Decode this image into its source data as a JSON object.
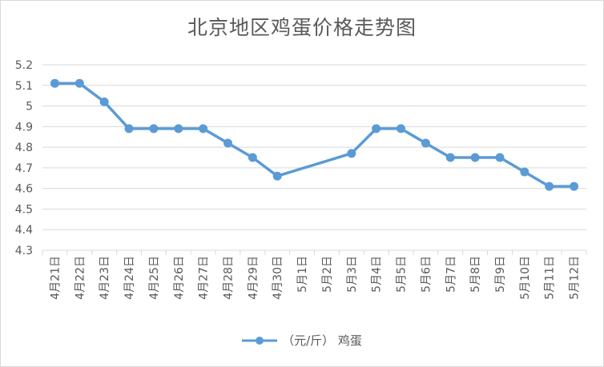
{
  "chart_data": {
    "type": "line",
    "title": "北京地区鸡蛋价格走势图",
    "xlabel": "",
    "ylabel": "",
    "categories": [
      "4月21日",
      "4月22日",
      "4月23日",
      "4月24日",
      "4月25日",
      "4月26日",
      "4月27日",
      "4月28日",
      "4月29日",
      "4月30日",
      "5月1日",
      "5月2日",
      "5月3日",
      "5月4日",
      "5月5日",
      "5月6日",
      "5月7日",
      "5月8日",
      "5月9日",
      "5月10日",
      "5月11日",
      "5月12日"
    ],
    "series": [
      {
        "name": "（元/斤） 鸡蛋",
        "values": [
          5.11,
          5.11,
          5.02,
          4.89,
          4.89,
          4.89,
          4.89,
          4.82,
          4.75,
          4.66,
          null,
          null,
          4.77,
          4.89,
          4.89,
          4.82,
          4.75,
          4.75,
          4.75,
          4.68,
          4.61,
          4.61
        ],
        "color": "#5b9bd5"
      }
    ],
    "ylim": [
      4.3,
      5.2
    ],
    "yticks": [
      "4.3",
      "4.4",
      "4.5",
      "4.6",
      "4.7",
      "4.8",
      "4.9",
      "5",
      "5.1",
      "5.2"
    ],
    "grid": true,
    "legend_position": "bottom"
  }
}
